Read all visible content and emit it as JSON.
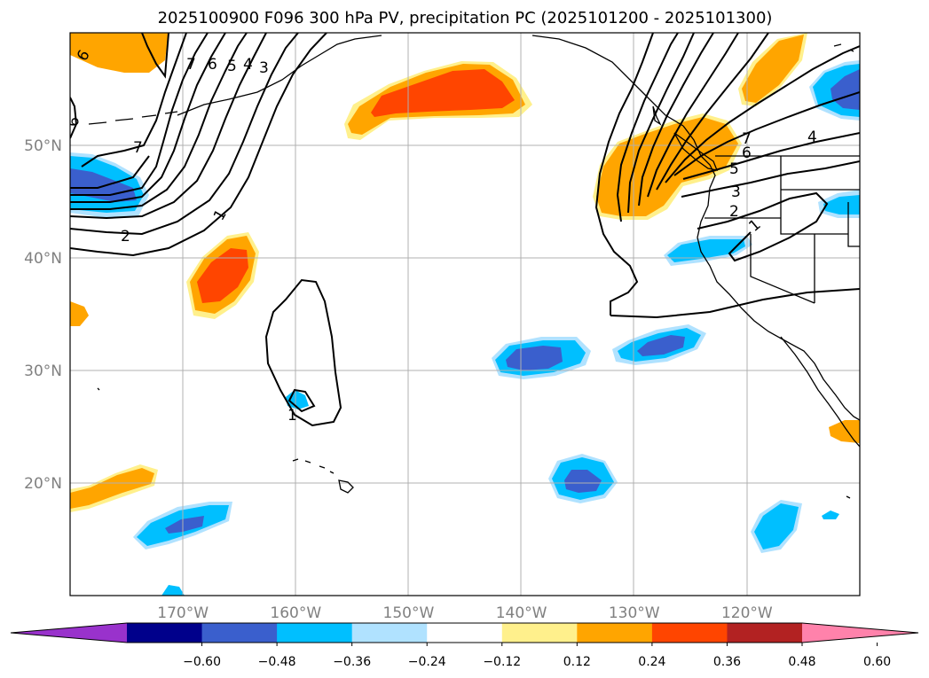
{
  "title": "2025100900 F096 300 hPa PV, precipitation PC (2025101200 - 2025101300)",
  "chart_data": {
    "type": "contour-map",
    "title": "2025100900 F096 300 hPa PV, precipitation PC (2025101200 - 2025101300)",
    "lon_range": [
      -180,
      -110
    ],
    "lat_range": [
      10,
      60
    ],
    "lat_ticks": [
      {
        "value": 20,
        "label": "20°N"
      },
      {
        "value": 30,
        "label": "30°N"
      },
      {
        "value": 40,
        "label": "40°N"
      },
      {
        "value": 50,
        "label": "50°N"
      }
    ],
    "lon_ticks": [
      {
        "value": -170,
        "label": "170°W"
      },
      {
        "value": -160,
        "label": "160°W"
      },
      {
        "value": -150,
        "label": "150°W"
      },
      {
        "value": -140,
        "label": "140°W"
      },
      {
        "value": -130,
        "label": "130°W"
      },
      {
        "value": -120,
        "label": "120°W"
      }
    ],
    "grid": true,
    "colorbar": {
      "levels": [
        -0.6,
        -0.48,
        -0.36,
        -0.24,
        -0.12,
        0.12,
        0.24,
        0.36,
        0.48,
        0.6
      ],
      "tick_labels": [
        "−0.60",
        "−0.48",
        "−0.36",
        "−0.24",
        "−0.12",
        "0.12",
        "0.24",
        "0.36",
        "0.48",
        "0.60"
      ],
      "colors": [
        "#9932cc",
        "#00008b",
        "#3a5fcd",
        "#00bfff",
        "#b0e2ff",
        "#ffffff",
        "#fff08c",
        "#ffa500",
        "#ff4500",
        "#b22222",
        "#ff82ab"
      ],
      "extend": "both"
    },
    "pv_contour_labels": [
      "6",
      "7",
      "6",
      "5",
      "4",
      "3",
      "9",
      "7",
      "2",
      "1",
      "7",
      "6",
      "5",
      "4",
      "3",
      "2",
      "1",
      "1"
    ],
    "precip_anomaly_features": [
      {
        "lon": -147,
        "lat": 55,
        "peak": 0.4
      },
      {
        "lon": -166,
        "lat": 38.5,
        "peak": 0.4
      },
      {
        "lon": -176,
        "lat": 57,
        "peak": 0.3
      },
      {
        "lon": -128,
        "lat": 48.5,
        "peak": 0.3
      },
      {
        "lon": -116,
        "lat": 55,
        "peak": 0.3
      },
      {
        "lon": -177,
        "lat": 47,
        "peak": -0.4
      },
      {
        "lon": -112,
        "lat": 55,
        "peak": -0.4
      },
      {
        "lon": -140,
        "lat": 31,
        "peak": -0.4
      },
      {
        "lon": -129,
        "lat": 32,
        "peak": -0.4
      },
      {
        "lon": -135,
        "lat": 20.5,
        "peak": -0.4
      },
      {
        "lon": -168,
        "lat": 16.5,
        "peak": -0.4
      },
      {
        "lon": -118,
        "lat": 16.5,
        "peak": -0.3
      },
      {
        "lon": -124,
        "lat": 41,
        "peak": -0.3
      }
    ]
  }
}
